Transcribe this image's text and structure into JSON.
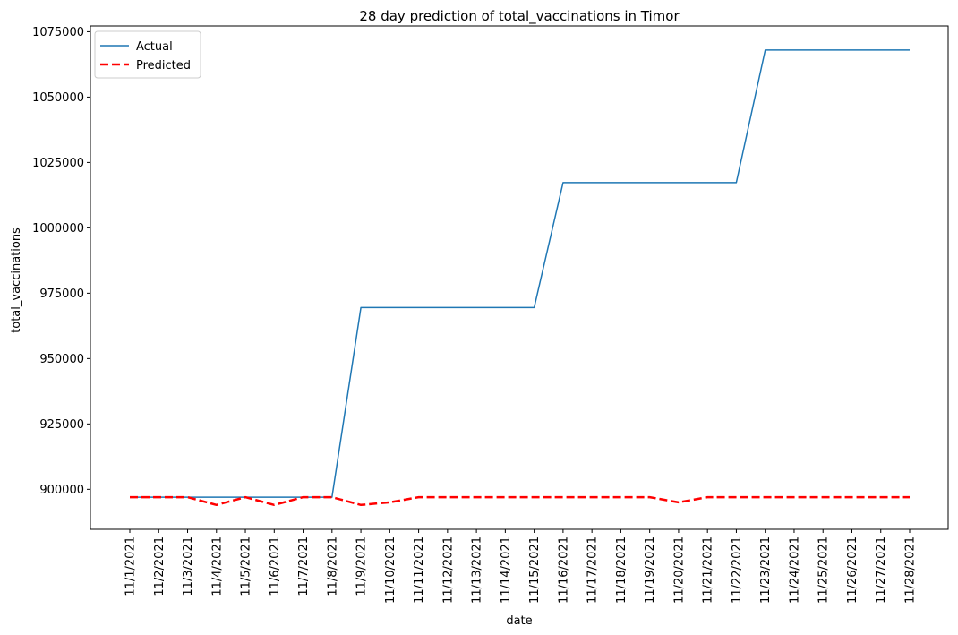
{
  "chart_data": {
    "type": "line",
    "title": "28 day prediction of total_vaccinations in Timor",
    "xlabel": "date",
    "ylabel": "total_vaccinations",
    "x": [
      "11/1/2021",
      "11/2/2021",
      "11/3/2021",
      "11/4/2021",
      "11/5/2021",
      "11/6/2021",
      "11/7/2021",
      "11/8/2021",
      "11/9/2021",
      "11/10/2021",
      "11/11/2021",
      "11/12/2021",
      "11/13/2021",
      "11/14/2021",
      "11/15/2021",
      "11/16/2021",
      "11/17/2021",
      "11/18/2021",
      "11/19/2021",
      "11/20/2021",
      "11/21/2021",
      "11/22/2021",
      "11/23/2021",
      "11/24/2021",
      "11/25/2021",
      "11/26/2021",
      "11/27/2021",
      "11/28/2021"
    ],
    "y_ticks": [
      "900000",
      "925000",
      "950000",
      "975000",
      "1000000",
      "1025000",
      "1050000",
      "1075000"
    ],
    "ylim": [
      884700,
      1077200
    ],
    "grid": false,
    "legend_position": "top-left",
    "series": [
      {
        "name": "Actual",
        "color": "#1f77b4",
        "style": "solid",
        "values": [
          897000,
          897000,
          897000,
          897000,
          897000,
          897000,
          897000,
          897000,
          969500,
          969500,
          969500,
          969500,
          969500,
          969500,
          969500,
          1017300,
          1017300,
          1017300,
          1017300,
          1017300,
          1017300,
          1017300,
          1068000,
          1068000,
          1068000,
          1068000,
          1068000,
          1068000
        ]
      },
      {
        "name": "Predicted",
        "color": "#ff0000",
        "style": "dashed",
        "values": [
          897000,
          897000,
          897000,
          894000,
          897000,
          894000,
          897000,
          897000,
          894000,
          895000,
          897000,
          897000,
          897000,
          897000,
          897000,
          897000,
          897000,
          897000,
          897000,
          895000,
          897000,
          897000,
          897000,
          897000,
          897000,
          897000,
          897000,
          897000
        ]
      }
    ]
  }
}
